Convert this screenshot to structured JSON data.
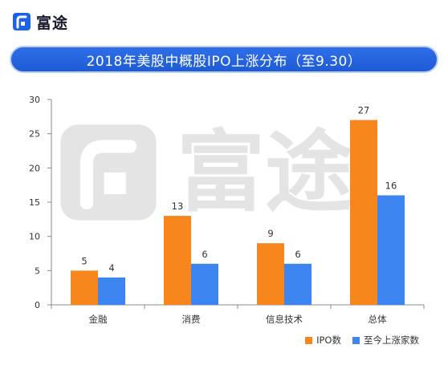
{
  "brand": {
    "name": "富途",
    "mark_icon": "futu-logo-icon",
    "color": "#1c63e8"
  },
  "watermark": {
    "text": "富途"
  },
  "colors": {
    "orange": "#f7861c",
    "blue": "#3d85f0",
    "title_bg": "#2563e0",
    "axis": "#888888",
    "text": "#333333"
  },
  "chart_data": {
    "type": "bar",
    "title": "2018年美股中概股IPO上涨分布（至9.30）",
    "categories": [
      "金融",
      "消费",
      "信息技术",
      "总体"
    ],
    "series": [
      {
        "name": "IPO数",
        "values": [
          5,
          13,
          9,
          27
        ],
        "color": "#f7861c"
      },
      {
        "name": "至今上涨家数",
        "values": [
          4,
          6,
          6,
          16
        ],
        "color": "#3d85f0"
      }
    ],
    "yticks": [
      "0",
      "5",
      "10",
      "15",
      "20",
      "25",
      "30"
    ],
    "ylim": [
      0,
      30
    ],
    "grid": false,
    "legend_position": "bottom-right",
    "data_labels": true
  }
}
